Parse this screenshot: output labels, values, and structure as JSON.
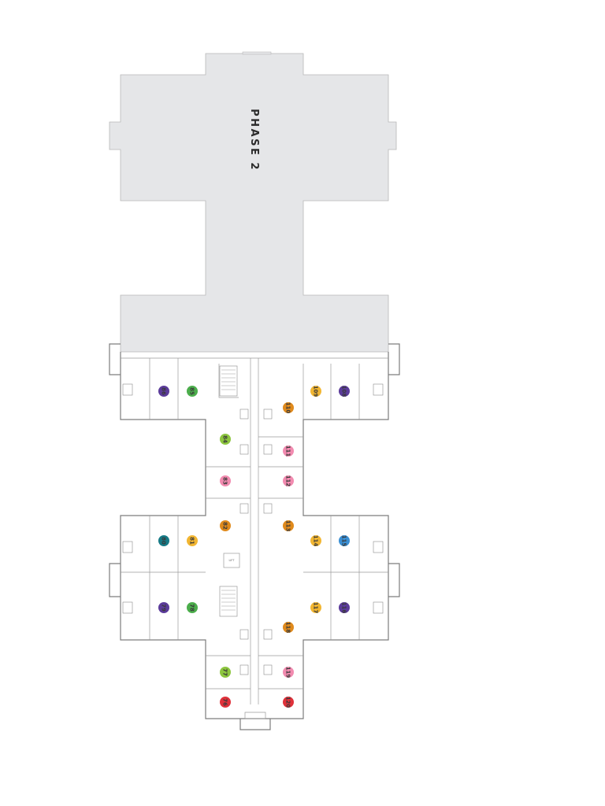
{
  "plan": {
    "phase_label": "PHASE 2",
    "lift_label": "LIFT",
    "unit_colors": {
      "purple": "#5b3b9a",
      "green": "#4cae4c",
      "lime": "#8dc63f",
      "gold": "#f2b632",
      "orange": "#e08a1c",
      "pink": "#f28bb0",
      "teal": "#167a86",
      "blue": "#3a8fd4",
      "red": "#e0313a"
    },
    "units": [
      {
        "label": "86",
        "color": "purple"
      },
      {
        "label": "85",
        "color": "green"
      },
      {
        "label": "109",
        "color": "gold"
      },
      {
        "label": "108",
        "color": "purple"
      },
      {
        "label": "110",
        "color": "orange"
      },
      {
        "label": "84",
        "color": "lime"
      },
      {
        "label": "111",
        "color": "pink"
      },
      {
        "label": "83",
        "color": "pink"
      },
      {
        "label": "112",
        "color": "pink"
      },
      {
        "label": "82",
        "color": "orange"
      },
      {
        "label": "113",
        "color": "orange"
      },
      {
        "label": "80",
        "color": "teal"
      },
      {
        "label": "81",
        "color": "gold"
      },
      {
        "label": "114",
        "color": "gold"
      },
      {
        "label": "115",
        "color": "blue"
      },
      {
        "label": "79",
        "color": "purple"
      },
      {
        "label": "78",
        "color": "green"
      },
      {
        "label": "117",
        "color": "gold"
      },
      {
        "label": "116",
        "color": "purple"
      },
      {
        "label": "118",
        "color": "orange"
      },
      {
        "label": "77",
        "color": "lime"
      },
      {
        "label": "119",
        "color": "pink"
      },
      {
        "label": "76",
        "color": "red"
      },
      {
        "label": "120",
        "color": "red"
      }
    ]
  }
}
